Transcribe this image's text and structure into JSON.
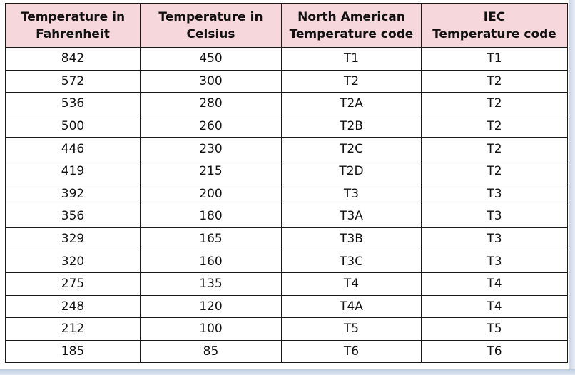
{
  "table": {
    "headers": [
      [
        "Temperature in",
        "Fahrenheit"
      ],
      [
        "Temperature in",
        "Celsius"
      ],
      [
        "North American",
        "Temperature code"
      ],
      [
        "IEC",
        "Temperature code"
      ]
    ],
    "rows": [
      [
        "842",
        "450",
        "T1",
        "T1"
      ],
      [
        "572",
        "300",
        "T2",
        "T2"
      ],
      [
        "536",
        "280",
        "T2A",
        "T2"
      ],
      [
        "500",
        "260",
        "T2B",
        "T2"
      ],
      [
        "446",
        "230",
        "T2C",
        "T2"
      ],
      [
        "419",
        "215",
        "T2D",
        "T2"
      ],
      [
        "392",
        "200",
        "T3",
        "T3"
      ],
      [
        "356",
        "180",
        "T3A",
        "T3"
      ],
      [
        "329",
        "165",
        "T3B",
        "T3"
      ],
      [
        "320",
        "160",
        "T3C",
        "T3"
      ],
      [
        "275",
        "135",
        "T4",
        "T4"
      ],
      [
        "248",
        "120",
        "T4A",
        "T4"
      ],
      [
        "212",
        "100",
        "T5",
        "T5"
      ],
      [
        "185",
        "85",
        "T6",
        "T6"
      ]
    ]
  },
  "colors": {
    "header_background": "#f5d7dc",
    "border": "#1a1a1a",
    "edge_shadow": "#c9d6e6"
  }
}
